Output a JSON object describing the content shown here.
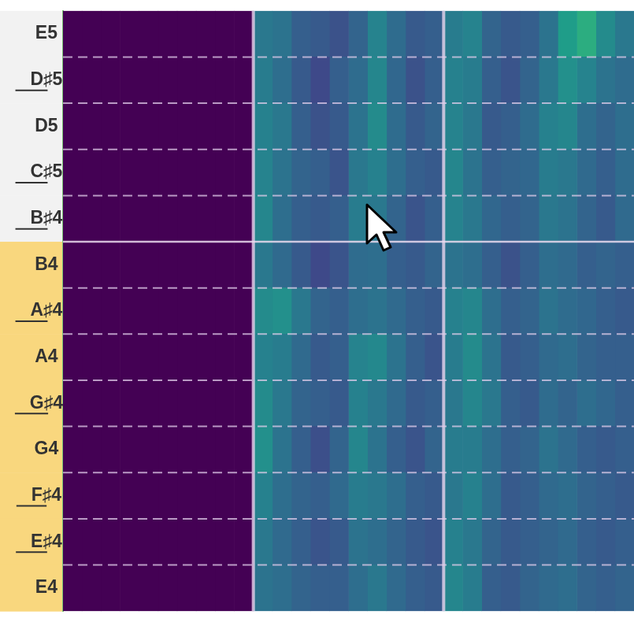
{
  "chart_data": {
    "type": "heatmap",
    "categories": [
      "E5",
      "D♯5",
      "D5",
      "C♯5",
      "B♯4",
      "B4",
      "A♯4",
      "A4",
      "G♯4",
      "G4",
      "F♯4",
      "E♯4",
      "E4"
    ],
    "bins": [
      0,
      1,
      2,
      3,
      4,
      5,
      6,
      7,
      8,
      9,
      10,
      11,
      12,
      13,
      14,
      15,
      16,
      17,
      18,
      19,
      20,
      21,
      22,
      23,
      24,
      25,
      26,
      27,
      28,
      29,
      30
    ],
    "xlim": [
      0,
      30
    ],
    "xticks": [
      0,
      10,
      20,
      30
    ],
    "cells": [
      [
        0,
        0,
        0,
        0,
        0,
        0,
        0,
        0,
        0,
        0,
        0.4,
        0.38,
        0.3,
        0.28,
        0.25,
        0.32,
        0.45,
        0.35,
        0.28,
        0.3,
        0.42,
        0.45,
        0.32,
        0.28,
        0.3,
        0.38,
        0.55,
        0.62,
        0.48,
        0.4
      ],
      [
        0,
        0,
        0,
        0,
        0,
        0,
        0,
        0,
        0,
        0,
        0.42,
        0.36,
        0.28,
        0.22,
        0.3,
        0.35,
        0.46,
        0.33,
        0.25,
        0.3,
        0.44,
        0.42,
        0.3,
        0.26,
        0.32,
        0.4,
        0.5,
        0.45,
        0.38,
        0.35
      ],
      [
        0,
        0,
        0,
        0,
        0,
        0,
        0,
        0,
        0,
        0,
        0.44,
        0.4,
        0.3,
        0.25,
        0.28,
        0.38,
        0.48,
        0.35,
        0.28,
        0.32,
        0.45,
        0.4,
        0.28,
        0.3,
        0.35,
        0.44,
        0.46,
        0.36,
        0.32,
        0.36
      ],
      [
        0,
        0,
        0,
        0,
        0,
        0,
        0,
        0,
        0,
        0,
        0.45,
        0.38,
        0.32,
        0.3,
        0.26,
        0.4,
        0.44,
        0.36,
        0.3,
        0.28,
        0.46,
        0.38,
        0.3,
        0.32,
        0.33,
        0.42,
        0.4,
        0.34,
        0.3,
        0.35
      ],
      [
        0,
        0,
        0,
        0,
        0,
        0,
        0,
        0,
        0,
        0,
        0.46,
        0.36,
        0.3,
        0.28,
        0.3,
        0.42,
        0.4,
        0.32,
        0.26,
        0.3,
        0.45,
        0.4,
        0.33,
        0.3,
        0.32,
        0.4,
        0.38,
        0.32,
        0.28,
        0.34
      ],
      [
        0,
        0,
        0,
        0,
        0,
        0,
        0,
        0,
        0,
        0,
        0.4,
        0.34,
        0.28,
        0.22,
        0.26,
        0.35,
        0.36,
        0.3,
        0.28,
        0.32,
        0.38,
        0.36,
        0.3,
        0.25,
        0.3,
        0.36,
        0.34,
        0.3,
        0.32,
        0.3
      ],
      [
        0,
        0,
        0,
        0,
        0,
        0,
        0,
        0,
        0,
        0,
        0.48,
        0.5,
        0.4,
        0.32,
        0.3,
        0.36,
        0.38,
        0.34,
        0.3,
        0.28,
        0.44,
        0.46,
        0.36,
        0.3,
        0.32,
        0.38,
        0.35,
        0.33,
        0.3,
        0.28
      ],
      [
        0,
        0,
        0,
        0,
        0,
        0,
        0,
        0,
        0,
        0,
        0.44,
        0.42,
        0.34,
        0.28,
        0.3,
        0.45,
        0.47,
        0.38,
        0.3,
        0.26,
        0.42,
        0.48,
        0.38,
        0.28,
        0.3,
        0.34,
        0.36,
        0.32,
        0.3,
        0.3
      ],
      [
        0,
        0,
        0,
        0,
        0,
        0,
        0,
        0,
        0,
        0,
        0.48,
        0.4,
        0.32,
        0.3,
        0.28,
        0.44,
        0.4,
        0.34,
        0.28,
        0.3,
        0.4,
        0.46,
        0.4,
        0.3,
        0.28,
        0.35,
        0.32,
        0.36,
        0.33,
        0.3
      ],
      [
        0,
        0,
        0,
        0,
        0,
        0,
        0,
        0,
        0,
        0,
        0.5,
        0.38,
        0.3,
        0.24,
        0.32,
        0.46,
        0.38,
        0.3,
        0.26,
        0.32,
        0.42,
        0.42,
        0.36,
        0.3,
        0.32,
        0.38,
        0.34,
        0.3,
        0.28,
        0.3
      ],
      [
        0,
        0,
        0,
        0,
        0,
        0,
        0,
        0,
        0,
        0,
        0.44,
        0.36,
        0.32,
        0.3,
        0.34,
        0.42,
        0.4,
        0.36,
        0.3,
        0.28,
        0.4,
        0.44,
        0.36,
        0.28,
        0.3,
        0.34,
        0.36,
        0.32,
        0.3,
        0.28
      ],
      [
        0,
        0,
        0,
        0,
        0,
        0,
        0,
        0,
        0,
        0,
        0.4,
        0.34,
        0.3,
        0.26,
        0.28,
        0.38,
        0.36,
        0.32,
        0.28,
        0.26,
        0.44,
        0.4,
        0.32,
        0.28,
        0.3,
        0.32,
        0.34,
        0.3,
        0.28,
        0.3
      ],
      [
        0,
        0,
        0,
        0,
        0,
        0,
        0,
        0,
        0,
        0,
        0.38,
        0.36,
        0.32,
        0.3,
        0.3,
        0.36,
        0.4,
        0.34,
        0.3,
        0.28,
        0.46,
        0.42,
        0.3,
        0.28,
        0.32,
        0.34,
        0.36,
        0.32,
        0.3,
        0.32
      ]
    ],
    "color_range": [
      0,
      1
    ],
    "grid": true,
    "tick_labels": "y",
    "highlighted": [
      "B4",
      "A♯4",
      "A4",
      "G♯4",
      "G4",
      "F♯4",
      "E♯4",
      "E4"
    ],
    "highlight_color": "#f9d77e",
    "underlined": [
      "D♯5",
      "C♯5",
      "B♯4",
      "A♯4",
      "G♯4",
      "F♯4",
      "E♯4"
    ]
  }
}
